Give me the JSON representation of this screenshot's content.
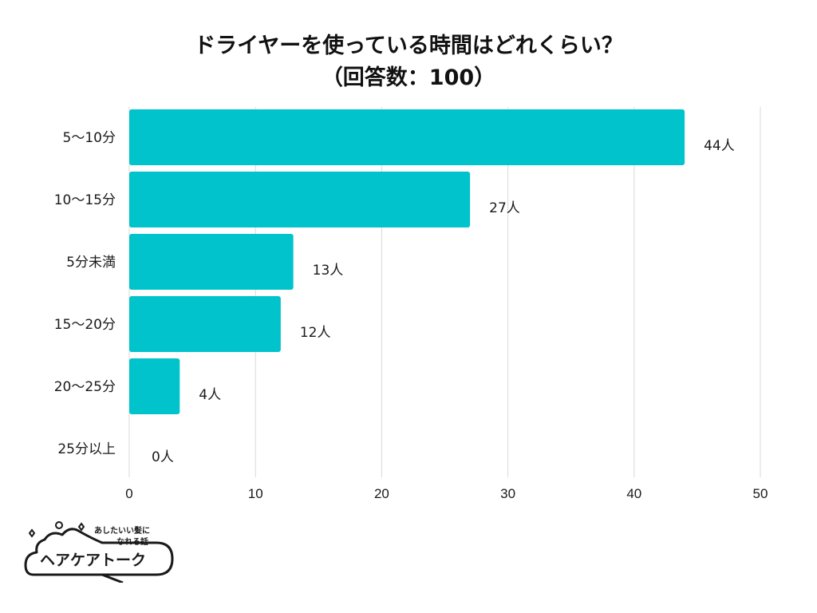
{
  "title": {
    "line1": "ドライヤーを使っている時間はどれくらい？",
    "line2": "（回答数：100）"
  },
  "colors": {
    "bar": "#00C3CB",
    "grid": "#d9d9d9",
    "text": "#1a1a1a"
  },
  "chart_data": {
    "type": "bar",
    "orientation": "horizontal",
    "categories": [
      "5〜10分",
      "10〜15分",
      "5分未満",
      "15〜20分",
      "20〜25分",
      "25分以上"
    ],
    "values": [
      44,
      27,
      13,
      12,
      4,
      0
    ],
    "value_labels": [
      "44人",
      "27人",
      "13人",
      "12人",
      "4人",
      "0人"
    ],
    "xlim": [
      0,
      50
    ],
    "xticks": [
      0,
      10,
      20,
      30,
      40,
      50
    ],
    "grid": true
  },
  "logo": {
    "tagline_line1": "あしたいい髪に",
    "tagline_line2": "なれる話",
    "name": "ヘアケアトーク"
  }
}
